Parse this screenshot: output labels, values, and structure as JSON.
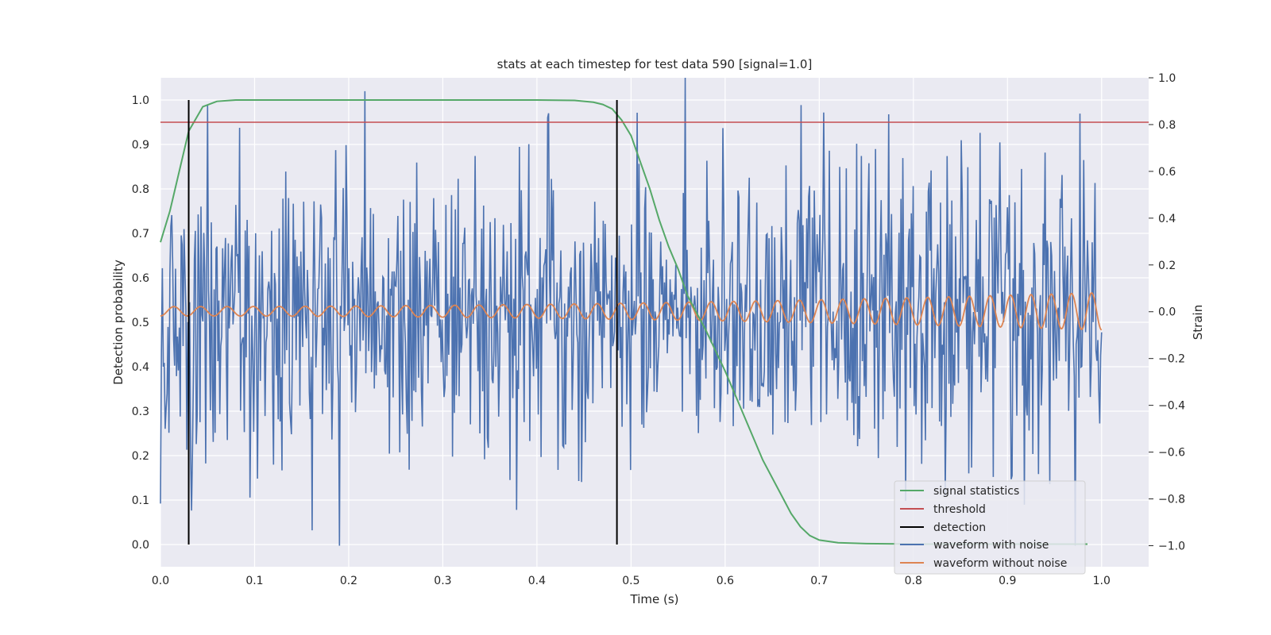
{
  "chart_data": {
    "type": "line",
    "title": "stats at each timestep for test data 590 [signal=1.0]",
    "xlabel": "Time (s)",
    "ylabel": "Detection probability",
    "y2label": "Strain",
    "xlim": [
      0.0,
      1.05
    ],
    "ylim": [
      -0.05,
      1.05
    ],
    "y2lim": [
      -1.09,
      1.0
    ],
    "xticks": [
      "0.0",
      "0.1",
      "0.2",
      "0.3",
      "0.4",
      "0.5",
      "0.6",
      "0.7",
      "0.8",
      "0.9",
      "1.0"
    ],
    "yticks": [
      "0.0",
      "0.1",
      "0.2",
      "0.3",
      "0.4",
      "0.5",
      "0.6",
      "0.7",
      "0.8",
      "0.9",
      "1.0"
    ],
    "y2ticks": [
      "−1.0",
      "−0.8",
      "−0.6",
      "−0.4",
      "−0.2",
      "0.0",
      "0.2",
      "0.4",
      "0.6",
      "0.8",
      "1.0"
    ],
    "grid": true,
    "legend_position": "lower-right",
    "colors": {
      "signal": "#55a868",
      "threshold": "#c44e52",
      "detection": "#000000",
      "noisy": "#4c72b0",
      "clean": "#dd8452",
      "background": "#eaeaf2",
      "grid": "#ffffff"
    },
    "series": [
      {
        "name": "signal statistics",
        "axis": "left",
        "x": [
          0.0,
          0.01,
          0.02,
          0.03,
          0.045,
          0.06,
          0.08,
          0.1,
          0.2,
          0.3,
          0.4,
          0.44,
          0.46,
          0.47,
          0.48,
          0.49,
          0.5,
          0.51,
          0.52,
          0.53,
          0.54,
          0.55,
          0.56,
          0.58,
          0.6,
          0.62,
          0.64,
          0.66,
          0.67,
          0.68,
          0.69,
          0.7,
          0.72,
          0.75,
          0.8,
          0.9,
          0.985
        ],
        "y": [
          0.68,
          0.75,
          0.84,
          0.93,
          0.985,
          0.997,
          1.0,
          1.0,
          1.0,
          1.0,
          1.0,
          0.999,
          0.995,
          0.99,
          0.98,
          0.955,
          0.92,
          0.86,
          0.8,
          0.73,
          0.67,
          0.62,
          0.56,
          0.48,
          0.39,
          0.29,
          0.19,
          0.11,
          0.07,
          0.04,
          0.02,
          0.01,
          0.004,
          0.002,
          0.001,
          0.001,
          0.001
        ]
      },
      {
        "name": "threshold",
        "axis": "left",
        "x": [
          0.0,
          1.05
        ],
        "y": [
          0.95,
          0.95
        ]
      },
      {
        "name": "detection",
        "axis": "left",
        "segments": [
          {
            "x": 0.03,
            "y": [
              0.0,
              1.0
            ]
          },
          {
            "x": 0.485,
            "y": [
              0.0,
              1.0
            ]
          }
        ]
      },
      {
        "name": "waveform with noise",
        "axis": "right",
        "x_start": 0.0,
        "x_end": 1.0,
        "samples": 1000,
        "amplitude_range": [
          -1.0,
          1.0
        ]
      },
      {
        "name": "waveform without noise",
        "axis": "right",
        "x_start": 0.0,
        "x_end": 1.0,
        "amplitude_start": 0.02,
        "amplitude_end": 0.08,
        "cycles": 41
      }
    ]
  }
}
